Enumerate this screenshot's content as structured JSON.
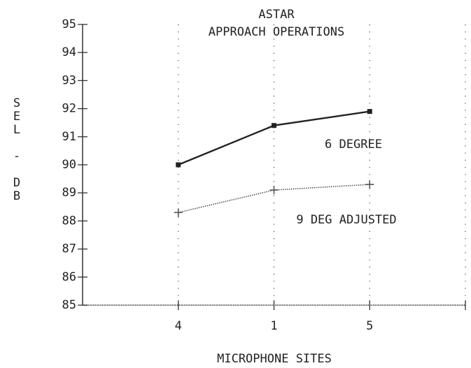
{
  "chart_data": {
    "type": "line",
    "title": "ASTAR",
    "subtitle": "APPROACH OPERATIONS",
    "x_label": "MICROPHONE SITES",
    "y_label": "SEL - DB",
    "categories": [
      "4",
      "1",
      "5",
      null
    ],
    "series": [
      {
        "name": "6 DEGREE",
        "color": "#222222",
        "style": "solid",
        "values": [
          90.0,
          91.4,
          91.9,
          null
        ]
      },
      {
        "name": "9 DEG ADJUSTED",
        "color": "#555555",
        "style": "dotted",
        "values": [
          88.3,
          89.1,
          89.3,
          null
        ]
      }
    ],
    "ylim": [
      85,
      95
    ],
    "yticks": [
      85,
      86,
      87,
      88,
      89,
      90,
      91,
      92,
      93,
      94,
      95
    ],
    "grid": true
  }
}
